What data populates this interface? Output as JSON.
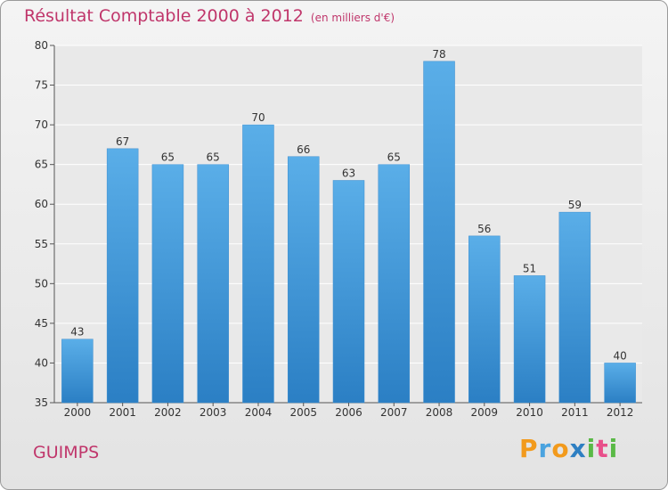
{
  "title": "Résultat Comptable 2000 à 2012",
  "title_unit": "(en milliers d'€)",
  "place_name": "GUIMPS",
  "logo": {
    "letters": [
      "P",
      "r",
      "o",
      "x",
      "i",
      "t",
      "i"
    ],
    "colors": [
      "#f29a1c",
      "#4aa3df",
      "#f29a1c",
      "#2e7fc2",
      "#5ab946",
      "#e84f8a",
      "#5ab946"
    ]
  },
  "colors": {
    "bar_top": "#5aaee8",
    "bar_bottom": "#2b7fc4",
    "title": "#c0366b"
  },
  "chart_data": {
    "type": "bar",
    "title": "Résultat Comptable 2000 à 2012",
    "categories": [
      "2000",
      "2001",
      "2002",
      "2003",
      "2004",
      "2005",
      "2006",
      "2007",
      "2008",
      "2009",
      "2010",
      "2011",
      "2012"
    ],
    "values": [
      43,
      67,
      65,
      65,
      70,
      66,
      63,
      65,
      78,
      56,
      51,
      59,
      40
    ],
    "ylim": [
      35,
      80
    ],
    "yticks": [
      35,
      40,
      45,
      50,
      55,
      60,
      65,
      70,
      75,
      80
    ],
    "grid": true,
    "xlabel": "",
    "ylabel": ""
  }
}
